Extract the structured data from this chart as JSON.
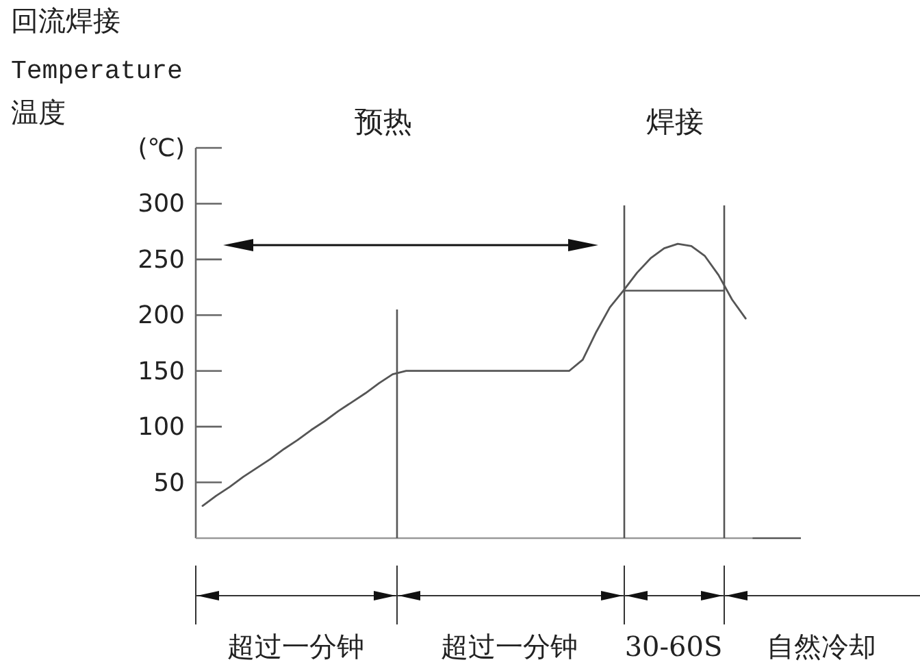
{
  "chart_data": {
    "type": "line",
    "title": "回流焊接",
    "subtitle": "Temperature",
    "ylabel": "温度",
    "categories": [
      null,
      null,
      null,
      null,
      null,
      null,
      null,
      null,
      null,
      null,
      null,
      null,
      null,
      null,
      null,
      null,
      null,
      null,
      null,
      null,
      null,
      null,
      null,
      null,
      null,
      null,
      null,
      null,
      null,
      null,
      null,
      null,
      null,
      null,
      null,
      null,
      null,
      null,
      null,
      null,
      null
    ],
    "ylim": [
      0,
      350
    ],
    "yticks": [
      50,
      100,
      150,
      200,
      250,
      300,
      {
        "value": 350,
        "label": "(℃)"
      }
    ],
    "tick_labels": "y",
    "annotations": [
      "预热",
      "焊接",
      "超过一分钟",
      "超过一分钟",
      "30-60S",
      "自然冷却"
    ],
    "ref_lines": [
      {
        "axis": "y",
        "value": 222,
        "color": "#555555"
      }
    ],
    "series": [
      {
        "color": "#555555",
        "values": [
          29,
          38,
          46,
          55,
          63,
          71,
          80,
          88,
          97,
          105,
          114,
          122,
          130,
          139,
          147,
          150,
          150,
          150,
          150,
          150,
          150,
          150,
          150,
          150,
          150,
          150,
          150,
          150,
          160,
          185,
          207,
          222,
          238,
          251,
          260,
          264,
          262,
          253,
          236,
          214,
          197
        ]
      }
    ]
  }
}
